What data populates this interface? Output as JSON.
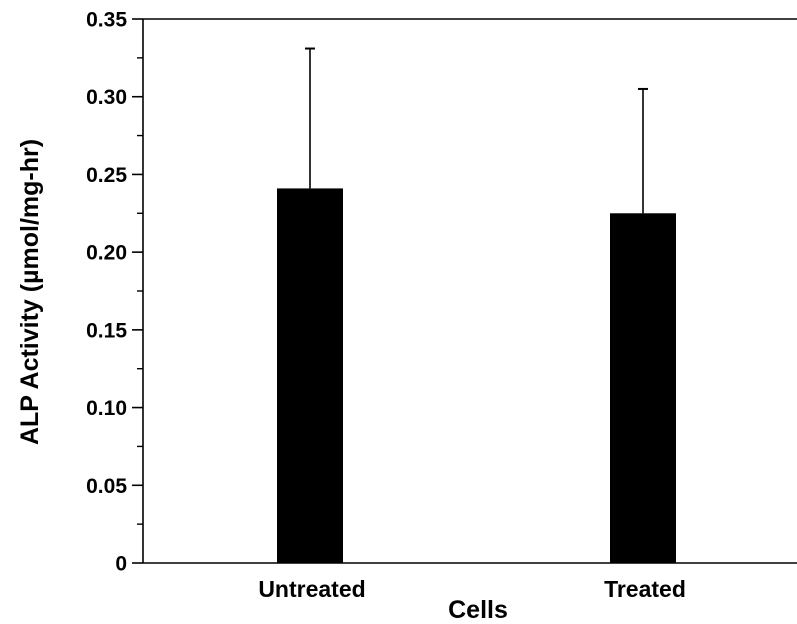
{
  "chart_data": {
    "type": "bar",
    "title": "",
    "xlabel": "Cells",
    "ylabel": "ALP Activity (µmol/mg-hr)",
    "categories": [
      "Untreated",
      "Treated"
    ],
    "values": [
      0.241,
      0.225
    ],
    "error": [
      0.09,
      0.08
    ],
    "ylim": [
      0,
      0.35
    ],
    "yticks": [
      0,
      0.05,
      0.1,
      0.15,
      0.2,
      0.25,
      0.3,
      0.35
    ],
    "ytick_labels": [
      "0",
      "0.05",
      "0.10",
      "0.15",
      "0.20",
      "0.25",
      "0.30",
      "0.35"
    ],
    "bar_color": "#000000",
    "grid": false,
    "legend": "none"
  }
}
